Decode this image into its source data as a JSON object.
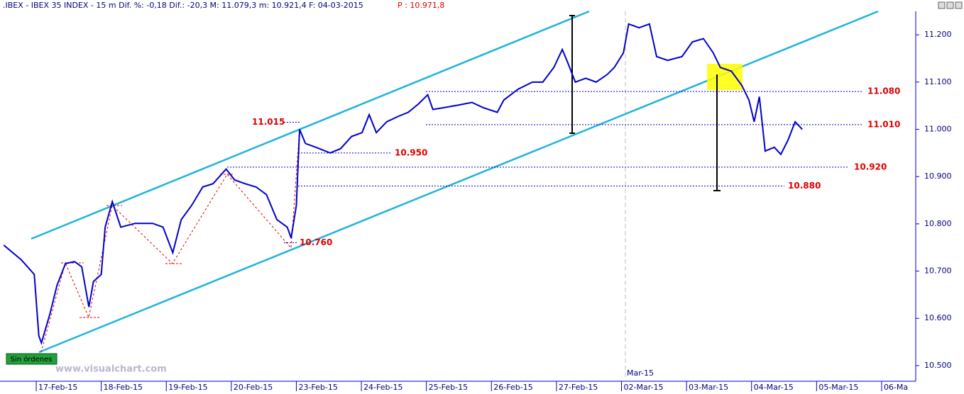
{
  "chart_data": {
    "type": "line",
    "title": ".IBEX - IBEX 35 INDEX -  15 m Dif. %: -0,18 Dif.: -20,3 M: 11.079,3 m: 10.921,4 F: 04-03-2015",
    "price_label": "P : 10.971,8",
    "period_label": "Mar-15",
    "button": "Sin órdenes",
    "watermark": "www.visualchart.com",
    "series": [
      {
        "name": "IBEX 35",
        "color": "#0000cc",
        "x": [
          -0.5,
          -0.23,
          -0.03,
          0.04,
          0.08,
          0.21,
          0.32,
          0.45,
          0.59,
          0.7,
          0.81,
          0.88,
          1.0,
          1.06,
          1.17,
          1.3,
          1.52,
          1.79,
          1.95,
          2.1,
          2.23,
          2.39,
          2.56,
          2.72,
          2.92,
          3.05,
          3.21,
          3.38,
          3.54,
          3.7,
          3.86,
          3.92,
          4.0,
          4.05,
          4.14,
          4.3,
          4.52,
          4.68,
          4.85,
          5.01,
          5.12,
          5.23,
          5.39,
          5.56,
          5.72,
          5.88,
          6.02,
          6.1,
          6.27,
          6.48,
          6.7,
          6.87,
          7.09,
          7.19,
          7.41,
          7.63,
          7.79,
          7.96,
          8.09,
          8.18,
          8.29,
          8.45,
          8.61,
          8.78,
          8.89,
          9.03,
          9.11,
          9.27,
          9.43,
          9.54,
          9.71,
          9.93,
          10.09,
          10.26,
          10.41,
          10.52,
          10.69,
          10.85,
          10.96,
          11.04,
          11.12,
          11.21,
          11.35,
          11.45,
          11.56,
          11.67,
          11.78
        ],
        "values": [
          10.755,
          10.724,
          10.693,
          10.563,
          10.548,
          10.609,
          10.67,
          10.716,
          10.72,
          10.709,
          10.624,
          10.678,
          10.693,
          10.793,
          10.847,
          10.793,
          10.801,
          10.801,
          10.793,
          10.739,
          10.809,
          10.839,
          10.878,
          10.885,
          10.916,
          10.893,
          10.885,
          10.878,
          10.862,
          10.809,
          10.793,
          10.77,
          10.839,
          11.0,
          10.97,
          10.962,
          10.95,
          10.959,
          10.985,
          10.993,
          11.031,
          10.993,
          11.016,
          11.027,
          11.036,
          11.054,
          11.073,
          11.042,
          11.046,
          11.051,
          11.057,
          11.046,
          11.036,
          11.062,
          11.085,
          11.1,
          11.1,
          11.131,
          11.169,
          11.139,
          11.1,
          11.108,
          11.1,
          11.116,
          11.131,
          11.162,
          11.223,
          11.215,
          11.223,
          11.154,
          11.146,
          11.154,
          11.185,
          11.192,
          11.162,
          11.131,
          11.123,
          11.093,
          11.062,
          11.016,
          11.069,
          10.954,
          10.962,
          10.947,
          10.977,
          11.016,
          11.0
        ]
      }
    ],
    "levels": [
      {
        "value": 11.08,
        "label": "11.080"
      },
      {
        "value": 11.01,
        "label": "11.010"
      },
      {
        "value": 10.92,
        "label": "10.920"
      },
      {
        "value": 10.88,
        "label": "10.880"
      },
      {
        "value": 11.015,
        "label": "11.015"
      },
      {
        "value": 10.95,
        "label": "10.950"
      },
      {
        "value": 10.76,
        "label": "10.760"
      }
    ],
    "xlim": [
      -0.557,
      13.47
    ],
    "xticks": [
      {
        "value": 0,
        "label": "17-Feb-15"
      },
      {
        "value": 1,
        "label": "18-Feb-15"
      },
      {
        "value": 2,
        "label": "19-Feb-15"
      },
      {
        "value": 3,
        "label": "20-Feb-15"
      },
      {
        "value": 4,
        "label": "23-Feb-15"
      },
      {
        "value": 5,
        "label": "24-Feb-15"
      },
      {
        "value": 6,
        "label": "25-Feb-15"
      },
      {
        "value": 7,
        "label": "26-Feb-15"
      },
      {
        "value": 8,
        "label": "27-Feb-15"
      },
      {
        "value": 9,
        "label": "02-Mar-15"
      },
      {
        "value": 10,
        "label": "03-Mar-15"
      },
      {
        "value": 11,
        "label": "04-Mar-15"
      },
      {
        "value": 12,
        "label": "05-Mar-15"
      },
      {
        "value": 13,
        "label": "06-Ma"
      }
    ],
    "ylim": [
      10.4669,
      11.2737
    ],
    "yticks": [
      {
        "value": 10.5,
        "label": "10.500"
      },
      {
        "value": 10.6,
        "label": "10.600"
      },
      {
        "value": 10.7,
        "label": "10.700"
      },
      {
        "value": 10.8,
        "label": "10.800"
      },
      {
        "value": 10.9,
        "label": "10.900"
      },
      {
        "value": 11.0,
        "label": "11.000"
      },
      {
        "value": 11.1,
        "label": "11.100"
      },
      {
        "value": 11.2,
        "label": "11.200"
      }
    ]
  }
}
